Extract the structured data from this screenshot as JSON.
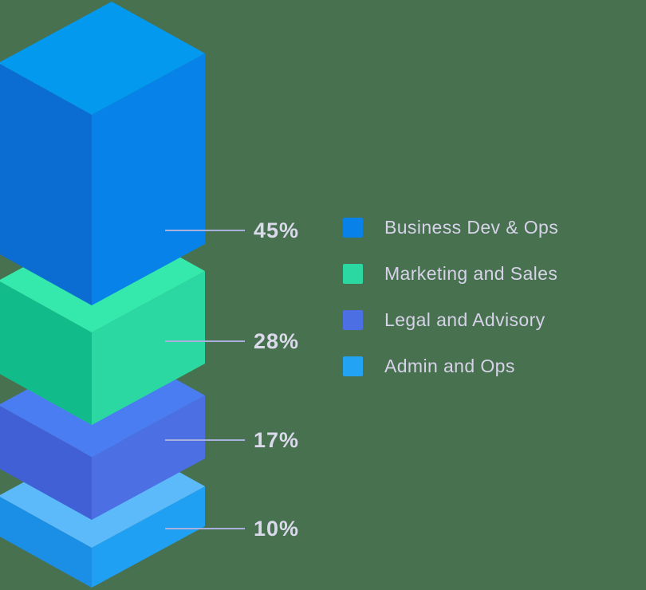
{
  "page": {
    "background_color": "#487150"
  },
  "chart_data": {
    "type": "bar",
    "subtype": "isometric-3d-stacked-blocks",
    "title": "",
    "unit": "%",
    "legend_position": "right",
    "callout_line_color": "#A9B0DE",
    "value_label_color": "#DADAEB",
    "legend_text_color": "#D6D3E8",
    "segments": [
      {
        "label": "Business Dev & Ops",
        "value": 45,
        "value_label": "45%",
        "swatch": "#0882E8",
        "face_colors": {
          "top": "#0399EE",
          "left": "#0B6DD1",
          "right": "#0682E8"
        }
      },
      {
        "label": "Marketing and Sales",
        "value": 28,
        "value_label": "28%",
        "swatch": "#2BD8A1",
        "face_colors": {
          "top": "#35E8AC",
          "left": "#12BC8A",
          "right": "#2BD8A1"
        }
      },
      {
        "label": "Legal and Advisory",
        "value": 17,
        "value_label": "17%",
        "swatch": "#4C6FE4",
        "face_colors": {
          "top": "#4A7DF2",
          "left": "#4160D6",
          "right": "#4C6FE4"
        }
      },
      {
        "label": "Admin and Ops",
        "value": 10,
        "value_label": "10%",
        "swatch": "#22A3F3",
        "face_colors": {
          "top": "#5CBAFA",
          "left": "#1B8FE5",
          "right": "#1FA0F2"
        }
      }
    ]
  }
}
